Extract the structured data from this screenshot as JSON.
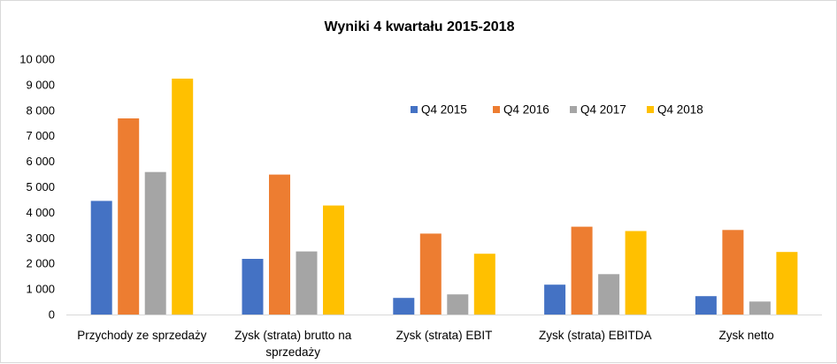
{
  "chart_data": {
    "type": "bar",
    "title": "Wyniki 4 kwartału 2015-2018",
    "categories": [
      [
        "Przychody ze sprzedaży"
      ],
      [
        "Zysk (strata) brutto na",
        "sprzedaży"
      ],
      [
        "Zysk (strata) EBIT"
      ],
      [
        "Zysk (strata) EBITDA"
      ],
      [
        "Zysk netto"
      ]
    ],
    "series": [
      {
        "name": "Q4 2015",
        "color": "#4472c4",
        "values": [
          4450,
          2180,
          650,
          1170,
          720
        ]
      },
      {
        "name": "Q4 2016",
        "color": "#ed7d31",
        "values": [
          7680,
          5480,
          3170,
          3440,
          3310
        ]
      },
      {
        "name": "Q4 2017",
        "color": "#a5a5a5",
        "values": [
          5580,
          2470,
          790,
          1580,
          510
        ]
      },
      {
        "name": "Q4 2018",
        "color": "#ffc000",
        "values": [
          9240,
          4270,
          2380,
          3270,
          2450
        ]
      }
    ],
    "yticks": [
      "0",
      "1 000",
      "2 000",
      "3 000",
      "4 000",
      "5 000",
      "6 000",
      "7 000",
      "8 000",
      "9 000",
      "10 000"
    ],
    "ylim": [
      0,
      10000
    ],
    "grid": false,
    "legend": "top-right"
  }
}
